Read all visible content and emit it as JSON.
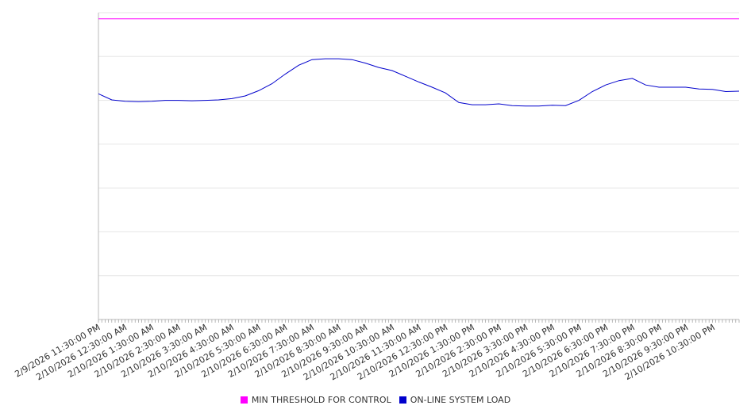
{
  "chart_data": {
    "type": "line",
    "title": "",
    "xlabel": "",
    "ylabel": "",
    "ylim": [
      0,
      7
    ],
    "grid": true,
    "legend_position": "bottom",
    "x_tick_labels": [
      "2/9/2026 11:30:00 PM",
      "2/10/2026 12:30:00 AM",
      "2/10/2026 1:30:00 AM",
      "2/10/2026 2:30:00 AM",
      "2/10/2026 3:30:00 AM",
      "2/10/2026 4:30:00 AM",
      "2/10/2026 5:30:00 AM",
      "2/10/2026 6:30:00 AM",
      "2/10/2026 7:30:00 AM",
      "2/10/2026 8:30:00 AM",
      "2/10/2026 9:30:00 AM",
      "2/10/2026 10:30:00 AM",
      "2/10/2026 11:30:00 AM",
      "2/10/2026 12:30:00 PM",
      "2/10/2026 1:30:00 PM",
      "2/10/2026 2:30:00 PM",
      "2/10/2026 3:30:00 PM",
      "2/10/2026 4:30:00 PM",
      "2/10/2026 5:30:00 PM",
      "2/10/2026 6:30:00 PM",
      "2/10/2026 7:30:00 PM",
      "2/10/2026 8:30:00 PM",
      "2/10/2026 9:30:00 PM",
      "2/10/2026 10:30:00 PM"
    ],
    "x": [
      "2/9/2026 11:30:00 PM",
      "2/10/2026 12:00:00 AM",
      "2/10/2026 12:30:00 AM",
      "2/10/2026 1:00:00 AM",
      "2/10/2026 1:30:00 AM",
      "2/10/2026 2:00:00 AM",
      "2/10/2026 2:30:00 AM",
      "2/10/2026 3:00:00 AM",
      "2/10/2026 3:30:00 AM",
      "2/10/2026 4:00:00 AM",
      "2/10/2026 4:30:00 AM",
      "2/10/2026 5:00:00 AM",
      "2/10/2026 5:30:00 AM",
      "2/10/2026 6:00:00 AM",
      "2/10/2026 6:30:00 AM",
      "2/10/2026 7:00:00 AM",
      "2/10/2026 7:30:00 AM",
      "2/10/2026 8:00:00 AM",
      "2/10/2026 8:30:00 AM",
      "2/10/2026 9:00:00 AM",
      "2/10/2026 9:30:00 AM",
      "2/10/2026 10:00:00 AM",
      "2/10/2026 10:30:00 AM",
      "2/10/2026 11:00:00 AM",
      "2/10/2026 11:30:00 AM",
      "2/10/2026 12:00:00 PM",
      "2/10/2026 12:30:00 PM",
      "2/10/2026 1:00:00 PM",
      "2/10/2026 1:30:00 PM",
      "2/10/2026 2:00:00 PM",
      "2/10/2026 2:30:00 PM",
      "2/10/2026 3:00:00 PM",
      "2/10/2026 3:30:00 PM",
      "2/10/2026 4:00:00 PM",
      "2/10/2026 4:30:00 PM",
      "2/10/2026 5:00:00 PM",
      "2/10/2026 5:30:00 PM",
      "2/10/2026 6:00:00 PM",
      "2/10/2026 6:30:00 PM",
      "2/10/2026 7:00:00 PM",
      "2/10/2026 7:30:00 PM",
      "2/10/2026 8:00:00 PM",
      "2/10/2026 8:30:00 PM",
      "2/10/2026 9:00:00 PM",
      "2/10/2026 9:30:00 PM",
      "2/10/2026 10:00:00 PM",
      "2/10/2026 10:30:00 PM",
      "2/10/2026 11:00:00 PM",
      "2/10/2026 11:25:00 PM"
    ],
    "series": [
      {
        "name": "MIN THRESHOLD FOR CONTROL",
        "color": "#ff00ff",
        "values": [
          6.86,
          6.86,
          6.86,
          6.86,
          6.86,
          6.86,
          6.86,
          6.86,
          6.86,
          6.86,
          6.86,
          6.86,
          6.86,
          6.86,
          6.86,
          6.86,
          6.86,
          6.86,
          6.86,
          6.86,
          6.86,
          6.86,
          6.86,
          6.86,
          6.86,
          6.86,
          6.86,
          6.86,
          6.86,
          6.86,
          6.86,
          6.86,
          6.86,
          6.86,
          6.86,
          6.86,
          6.86,
          6.86,
          6.86,
          6.86,
          6.86,
          6.86,
          6.86,
          6.86,
          6.86,
          6.86,
          6.86,
          6.86,
          6.86
        ]
      },
      {
        "name": "ON-LINE SYSTEM LOAD",
        "color": "#0000cc",
        "values": [
          5.15,
          5.01,
          4.98,
          4.97,
          4.98,
          5.0,
          5.0,
          4.99,
          5.0,
          5.01,
          5.04,
          5.1,
          5.22,
          5.38,
          5.6,
          5.8,
          5.93,
          5.95,
          5.95,
          5.93,
          5.85,
          5.75,
          5.68,
          5.55,
          5.42,
          5.3,
          5.17,
          4.95,
          4.9,
          4.9,
          4.92,
          4.88,
          4.87,
          4.87,
          4.89,
          4.88,
          5.0,
          5.2,
          5.35,
          5.45,
          5.5,
          5.35,
          5.3,
          5.3,
          5.3,
          5.26,
          5.25,
          5.2,
          5.21
        ]
      }
    ]
  }
}
